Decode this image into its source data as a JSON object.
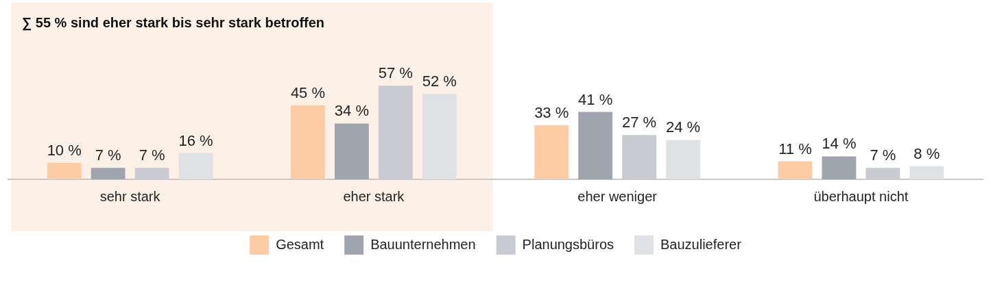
{
  "chart_data": {
    "type": "bar",
    "categories": [
      "sehr stark",
      "eher stark",
      "eher weniger",
      "überhaupt nicht"
    ],
    "series": [
      {
        "name": "Gesamt",
        "color": "#fdcba4",
        "values": [
          10,
          45,
          33,
          11
        ],
        "value_labels": [
          "10 %",
          "45 %",
          "33 %",
          "11 %"
        ]
      },
      {
        "name": "Bauunternehmen",
        "color": "#a0a4ae",
        "values": [
          7,
          34,
          41,
          14
        ],
        "value_labels": [
          "7 %",
          "34 %",
          "41 %",
          "14 %"
        ]
      },
      {
        "name": "Planungsbüros",
        "color": "#c8ccd2",
        "values": [
          7,
          57,
          27,
          7
        ],
        "value_labels": [
          "7 %",
          "57 %",
          "27 %",
          "7 %"
        ]
      },
      {
        "name": "Bauzulieferer",
        "color": "#dfe1e4",
        "values": [
          16,
          52,
          24,
          8
        ],
        "value_labels": [
          "16 %",
          "52 %",
          "24 %",
          "8 %"
        ]
      }
    ],
    "bands": [
      {
        "axis": "x",
        "from": "sehr stark",
        "to": "eher stark",
        "label": "∑ 55 % sind eher stark bis sehr stark betroffen",
        "color": "#fdf1e7"
      }
    ],
    "legend": "bottom",
    "grid": false
  }
}
